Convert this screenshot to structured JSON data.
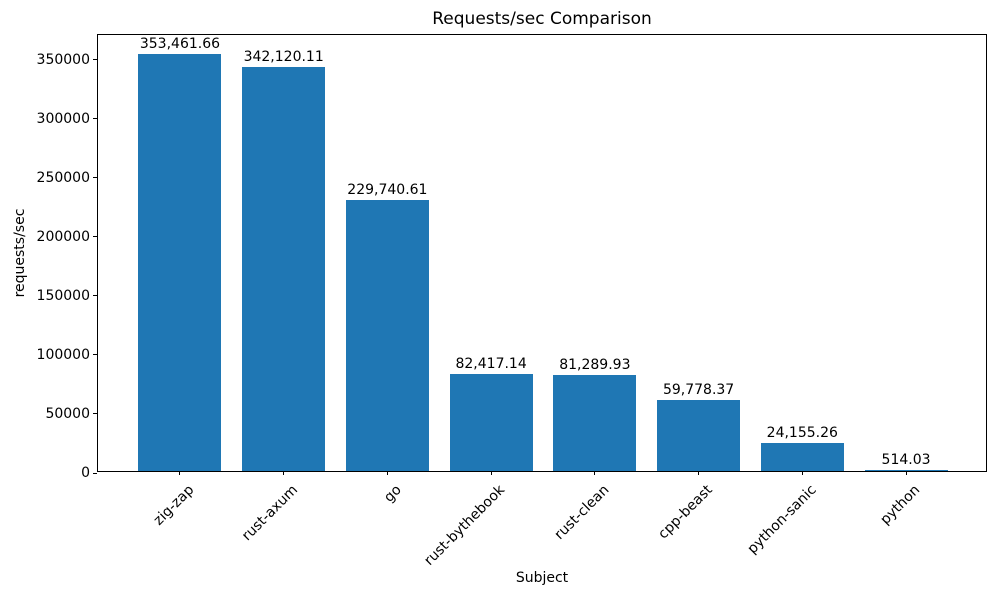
{
  "chart_data": {
    "type": "bar",
    "title": "Requests/sec Comparison",
    "xlabel": "Subject",
    "ylabel": "requests/sec",
    "categories": [
      "zig-zap",
      "rust-axum",
      "go",
      "rust-bythebook",
      "rust-clean",
      "cpp-beast",
      "python-sanic",
      "python"
    ],
    "values": [
      353461.66,
      342120.11,
      229740.61,
      82417.14,
      81289.93,
      59778.37,
      24155.26,
      514.03
    ],
    "value_labels": [
      "353,461.66",
      "342,120.11",
      "229,740.61",
      "82,417.14",
      "81,289.93",
      "59,778.37",
      "24,155.26",
      "514.03"
    ],
    "yticks": [
      0,
      50000,
      100000,
      150000,
      200000,
      250000,
      300000,
      350000
    ],
    "ytick_labels": [
      "0",
      "50000",
      "100000",
      "150000",
      "200000",
      "250000",
      "300000",
      "350000"
    ],
    "ylim": [
      0,
      371135
    ],
    "bar_color": "#1f77b4",
    "bar_width_ratio": 0.8,
    "tick_label_rotation": 45,
    "grid": false,
    "legend": null
  }
}
